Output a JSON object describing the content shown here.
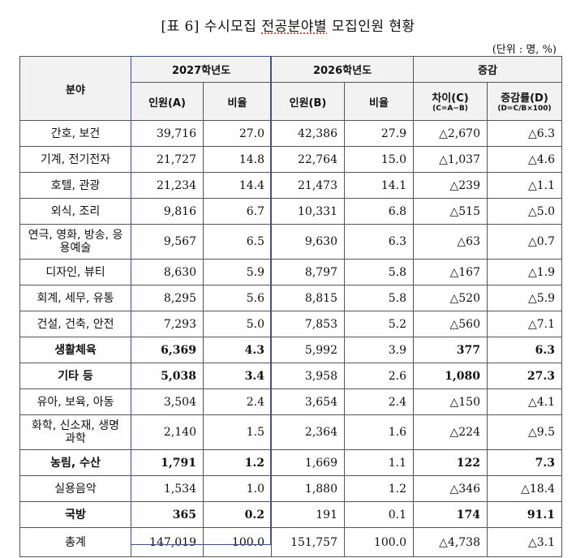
{
  "title": {
    "prefix": "[표 6] 수시모집 ",
    "underlined": "전공분야별",
    "suffix": " 모집인원 현황"
  },
  "unit": "(단위 : 명, %)",
  "header": {
    "field": "분야",
    "y2027": "2027학년도",
    "y2026": "2026학년도",
    "change": "증감",
    "count_a": "인원(A)",
    "ratio": "비율",
    "count_b": "인원(B)",
    "diff": "차이(C)",
    "diff_formula": "(C=A−B)",
    "rate": "증감률(D)",
    "rate_formula": "(D=C/B×100)"
  },
  "rows": [
    {
      "field": "간호, 보건",
      "a": "39,716",
      "ar": "27.0",
      "b": "42,386",
      "br": "27.9",
      "c": "△2,670",
      "d": "△6.3"
    },
    {
      "field": "기계, 전기전자",
      "a": "21,727",
      "ar": "14.8",
      "b": "22,764",
      "br": "15.0",
      "c": "△1,037",
      "d": "△4.6"
    },
    {
      "field": "호텔, 관광",
      "a": "21,234",
      "ar": "14.4",
      "b": "21,473",
      "br": "14.1",
      "c": "△239",
      "d": "△1.1"
    },
    {
      "field": "외식, 조리",
      "a": "9,816",
      "ar": "6.7",
      "b": "10,331",
      "br": "6.8",
      "c": "△515",
      "d": "△5.0"
    },
    {
      "field": "연극, 영화, 방송, 응용예술",
      "a": "9,567",
      "ar": "6.5",
      "b": "9,630",
      "br": "6.3",
      "c": "△63",
      "d": "△0.7"
    },
    {
      "field": "디자인, 뷰티",
      "a": "8,630",
      "ar": "5.9",
      "b": "8,797",
      "br": "5.8",
      "c": "△167",
      "d": "△1.9"
    },
    {
      "field": "회계, 세무, 유통",
      "a": "8,295",
      "ar": "5.6",
      "b": "8,815",
      "br": "5.8",
      "c": "△520",
      "d": "△5.9"
    },
    {
      "field": "건설, 건축, 안전",
      "a": "7,293",
      "ar": "5.0",
      "b": "7,853",
      "br": "5.2",
      "c": "△560",
      "d": "△7.1"
    },
    {
      "field": "생활체육",
      "a": "6,369",
      "ar": "4.3",
      "b": "5,992",
      "br": "3.9",
      "c": "377",
      "d": "6.3"
    },
    {
      "field": "기타 등",
      "a": "5,038",
      "ar": "3.4",
      "b": "3,958",
      "br": "2.6",
      "c": "1,080",
      "d": "27.3"
    },
    {
      "field": "유아, 보육, 아동",
      "a": "3,504",
      "ar": "2.4",
      "b": "3,654",
      "br": "2.4",
      "c": "△150",
      "d": "△4.1"
    },
    {
      "field": "화학, 신소재, 생명과학",
      "a": "2,140",
      "ar": "1.5",
      "b": "2,364",
      "br": "1.6",
      "c": "△224",
      "d": "△9.5"
    },
    {
      "field": "농림, 수산",
      "a": "1,791",
      "ar": "1.2",
      "b": "1,669",
      "br": "1.1",
      "c": "122",
      "d": "7.3"
    },
    {
      "field": "실용음악",
      "a": "1,534",
      "ar": "1.0",
      "b": "1,880",
      "br": "1.2",
      "c": "△346",
      "d": "△18.4"
    },
    {
      "field": "국방",
      "a": "365",
      "ar": "0.2",
      "b": "191",
      "br": "0.1",
      "c": "174",
      "d": "91.1"
    },
    {
      "field": "총계",
      "a": "147,019",
      "ar": "100.0",
      "b": "151,757",
      "br": "100.0",
      "c": "△4,738",
      "d": "△3.1"
    }
  ]
}
